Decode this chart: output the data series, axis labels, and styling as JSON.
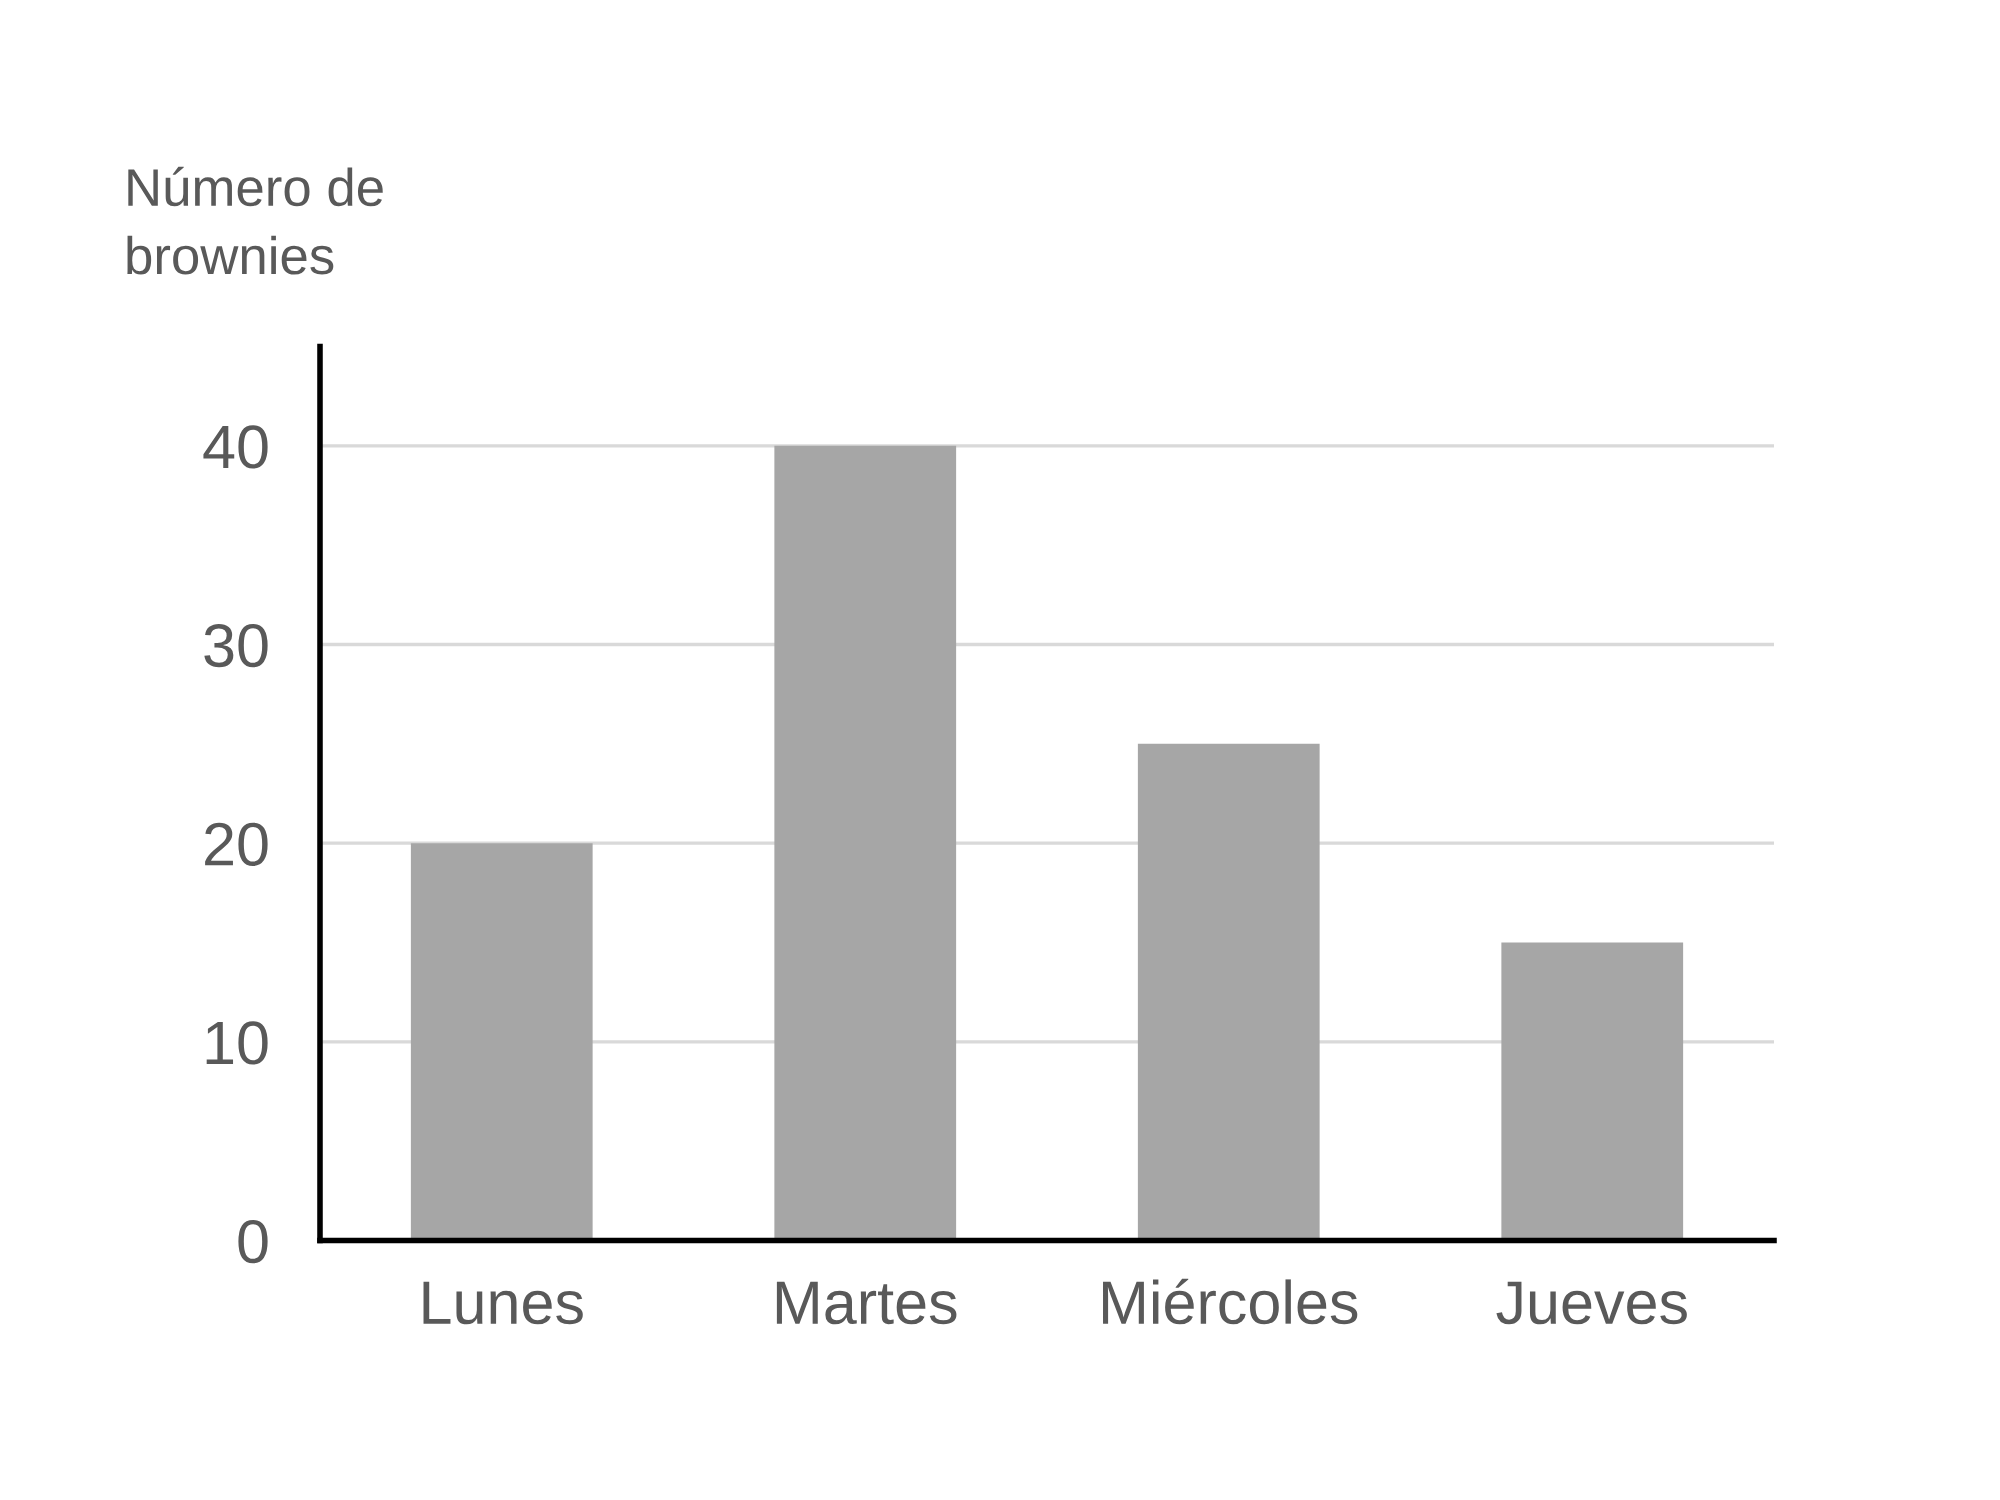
{
  "chart_data": {
    "type": "bar",
    "ylabel": "Número de\nbrownies",
    "categories": [
      "Lunes",
      "Martes",
      "Miércoles",
      "Jueves"
    ],
    "values": [
      20,
      40,
      25,
      15
    ],
    "color": "#a6a6a6",
    "ylim": [
      0,
      45
    ],
    "yticks": [
      0,
      10,
      20,
      30,
      40
    ],
    "grid": "y",
    "legend": false
  }
}
